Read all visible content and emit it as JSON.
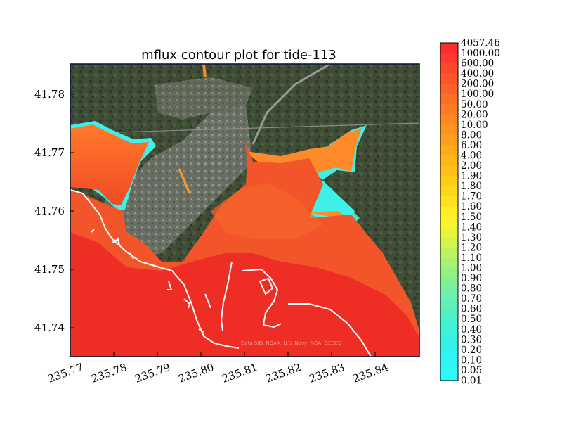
{
  "title": "mflux contour plot for tide-113",
  "attribution": "Data SIO, NOAA, U.S. Navy, NGA, GEBCO",
  "x_axis": {
    "ticks": [
      "235.77",
      "235.78",
      "235.79",
      "235.80",
      "235.81",
      "235.82",
      "235.83",
      "235.84"
    ],
    "range": [
      235.768,
      235.849
    ]
  },
  "y_axis": {
    "ticks": [
      "41.74",
      "41.75",
      "41.76",
      "41.77",
      "41.78"
    ],
    "range": [
      41.7355,
      41.7855
    ]
  },
  "colorbar": {
    "levels": [
      "4057.46",
      "1000.00",
      "600.00",
      "400.00",
      "200.00",
      "100.00",
      "50.00",
      "20.00",
      "10.00",
      "8.00",
      "6.00",
      "4.00",
      "2.00",
      "1.90",
      "1.80",
      "1.70",
      "1.60",
      "1.50",
      "1.40",
      "1.30",
      "1.20",
      "1.10",
      "1.00",
      "0.90",
      "0.80",
      "0.70",
      "0.60",
      "0.50",
      "0.40",
      "0.30",
      "0.20",
      "0.10",
      "0.05",
      "0.01"
    ],
    "colors": [
      "#ff2e2e",
      "#ff3b2d",
      "#ff482b",
      "#ff5529",
      "#ff6227",
      "#ff6f25",
      "#ff7c23",
      "#ff8921",
      "#ff951f",
      "#ffa01d",
      "#ffab1b",
      "#ffb619",
      "#ffc117",
      "#ffcc17",
      "#ffd719",
      "#ffe21c",
      "#ffee22",
      "#f8f52e",
      "#e7f63c",
      "#d2f54e",
      "#bdf360",
      "#a8f272",
      "#93f184",
      "#80f096",
      "#70f0a8",
      "#60f0b8",
      "#52f0c6",
      "#46f0d2",
      "#3cf1de",
      "#34f2e8",
      "#30f4f0",
      "#2ff6f6",
      "#2ef8fa"
    ]
  },
  "colors": {
    "ocean": "#ee2d24",
    "land": "#3d4a34",
    "shoreline": "#ffffff",
    "shallow": "#ff7a2a",
    "tidal_edge": "#39f0ee"
  }
}
